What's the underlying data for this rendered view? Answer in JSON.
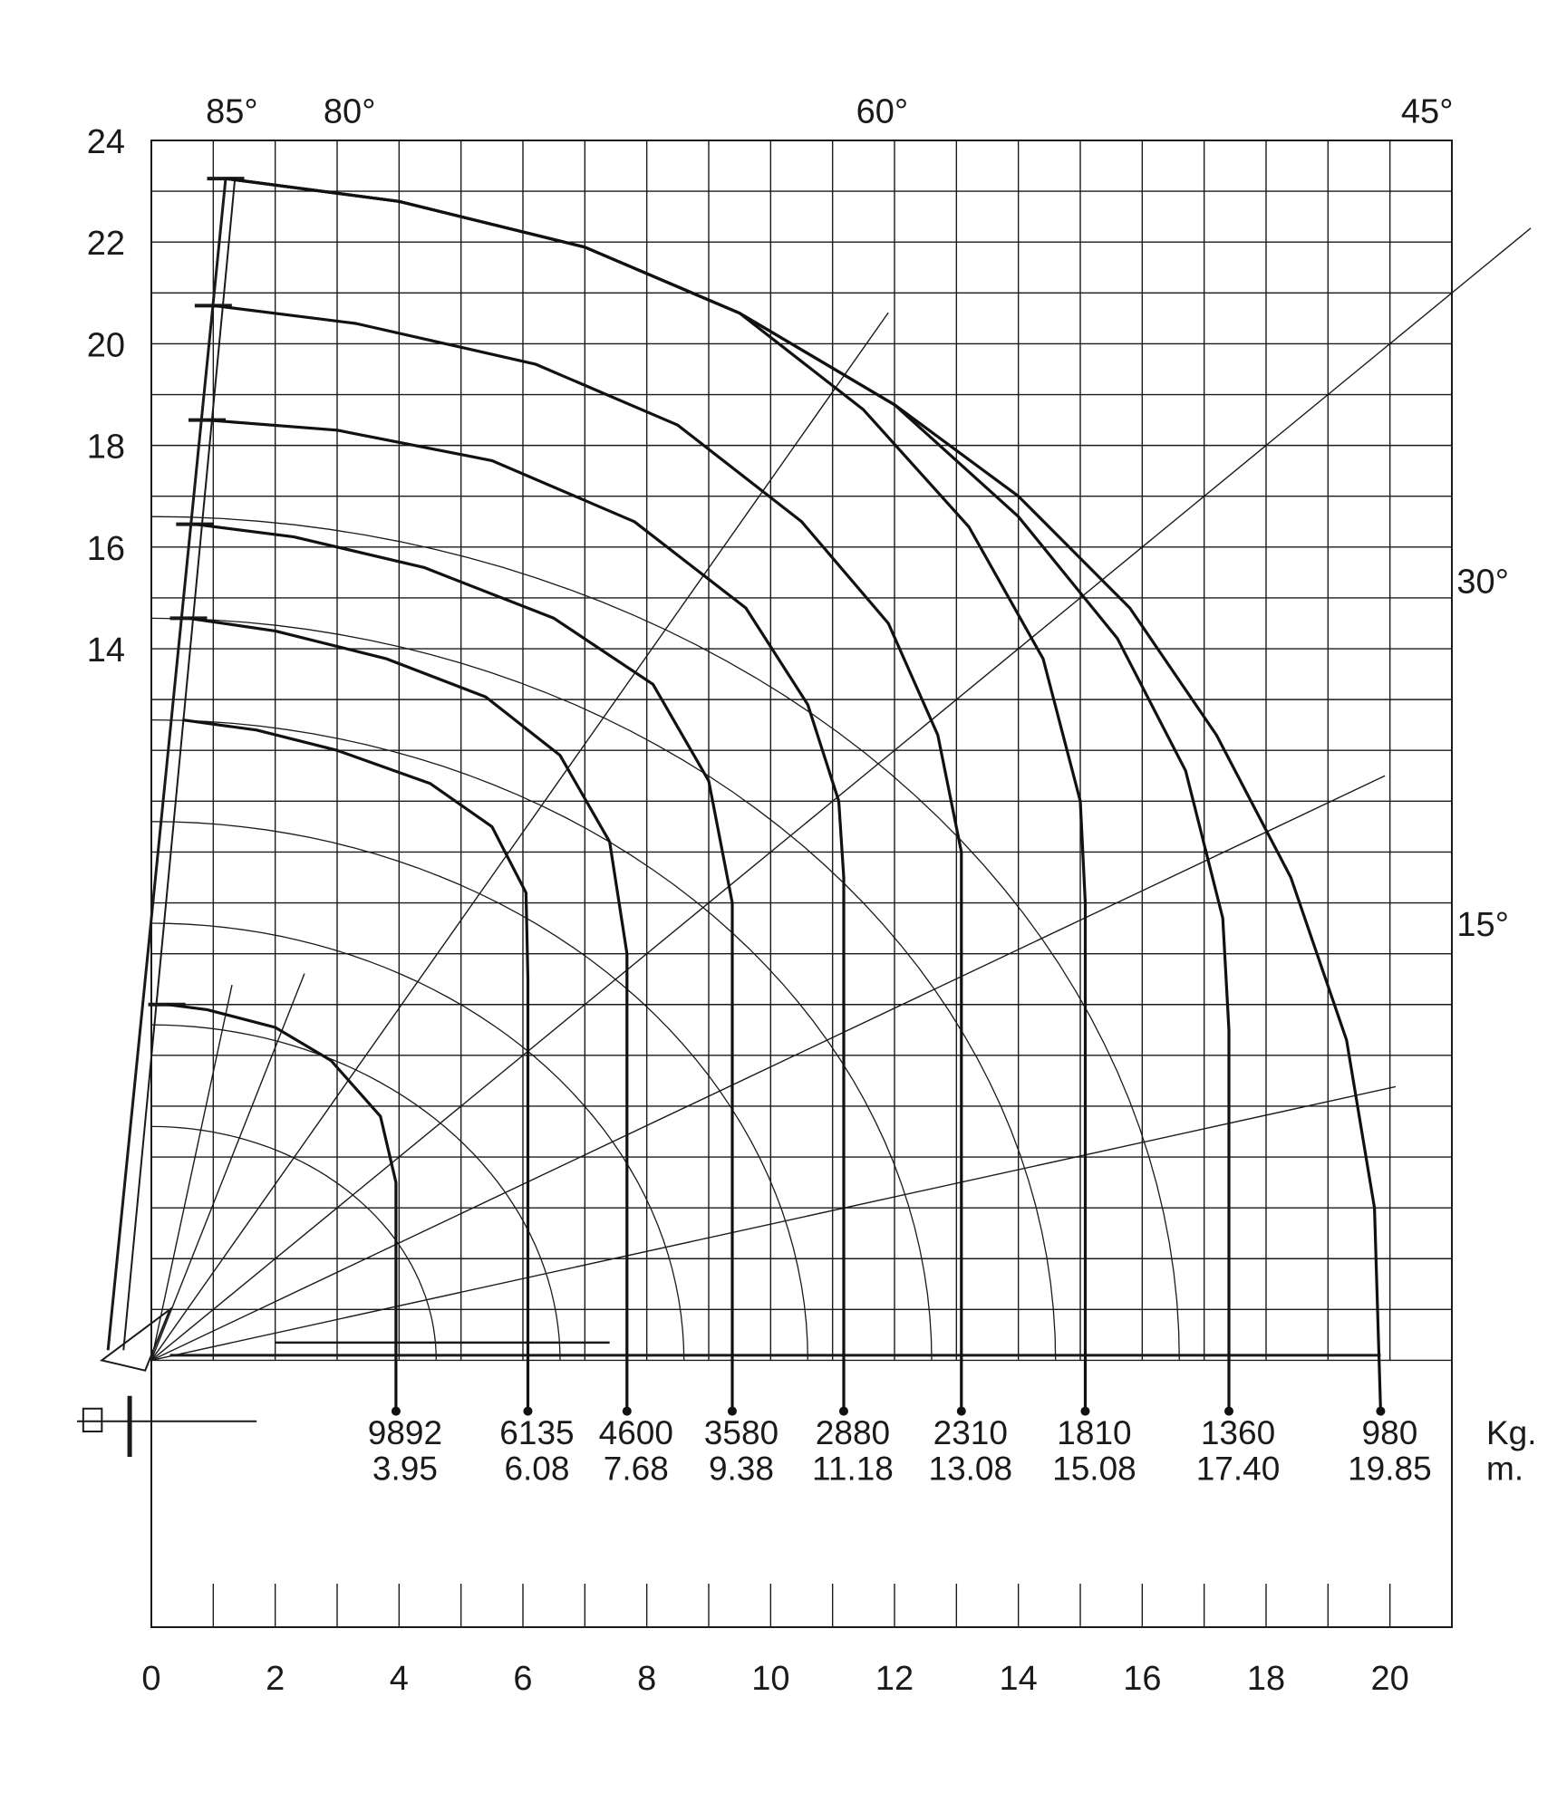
{
  "chart_data": {
    "type": "line",
    "title": "",
    "xlabel": "",
    "ylabel": "",
    "xlim": [
      0,
      21
    ],
    "ylim": [
      -5.25,
      24
    ],
    "x_ticks": [
      0,
      2,
      4,
      6,
      8,
      10,
      12,
      14,
      16,
      18,
      20
    ],
    "y_ticks": [
      24,
      22,
      20,
      18,
      16,
      14
    ],
    "grid": true,
    "angle_lines": [
      "85°",
      "80°",
      "60°",
      "45°",
      "30°",
      "15°"
    ],
    "unit_labels": {
      "load": "Kg.",
      "reach": "m."
    },
    "series": [
      {
        "load": "9892",
        "reach": "3.95",
        "x": [
          0.25,
          0.9,
          2.0,
          2.9,
          3.7,
          3.95,
          3.95
        ],
        "y": [
          7.0,
          6.9,
          6.55,
          5.9,
          4.8,
          3.5,
          -1.0
        ]
      },
      {
        "load": "6135",
        "reach": "6.08",
        "x": [
          0.5,
          1.7,
          3.0,
          4.5,
          5.5,
          6.05,
          6.08,
          6.08
        ],
        "y": [
          12.6,
          12.4,
          12.0,
          11.35,
          10.5,
          9.2,
          7.5,
          -1.0
        ]
      },
      {
        "load": "4600",
        "reach": "7.68",
        "x": [
          0.6,
          2.0,
          3.8,
          5.4,
          6.6,
          7.4,
          7.68,
          7.68
        ],
        "y": [
          14.6,
          14.35,
          13.8,
          13.05,
          11.9,
          10.2,
          8.0,
          -1.0
        ]
      },
      {
        "load": "3580",
        "reach": "9.38",
        "x": [
          0.7,
          2.3,
          4.4,
          6.5,
          8.1,
          9.0,
          9.38,
          9.38
        ],
        "y": [
          16.45,
          16.2,
          15.6,
          14.6,
          13.3,
          11.4,
          9.0,
          -1.0
        ]
      },
      {
        "load": "2880",
        "reach": "11.18",
        "x": [
          0.9,
          3.0,
          5.5,
          7.8,
          9.6,
          10.6,
          11.1,
          11.18,
          11.18
        ],
        "y": [
          18.5,
          18.3,
          17.7,
          16.5,
          14.8,
          12.9,
          11.0,
          9.5,
          -1.0
        ]
      },
      {
        "load": "2310",
        "reach": "13.08",
        "x": [
          1.0,
          3.3,
          6.2,
          8.5,
          10.5,
          11.9,
          12.7,
          13.08,
          13.08
        ],
        "y": [
          20.75,
          20.4,
          19.6,
          18.4,
          16.5,
          14.5,
          12.3,
          10.0,
          -1.0
        ]
      },
      {
        "load": "1810",
        "reach": "15.08",
        "x": [
          1.2,
          4.0,
          7.0,
          9.5,
          11.5,
          13.2,
          14.4,
          15.0,
          15.08,
          15.08
        ],
        "y": [
          23.25,
          22.8,
          21.9,
          20.6,
          18.7,
          16.4,
          13.8,
          11.0,
          9.0,
          -1.0
        ]
      },
      {
        "load": "1360",
        "reach": "17.40",
        "x": [
          1.2,
          4.0,
          7.0,
          9.5,
          12.0,
          14.0,
          15.6,
          16.7,
          17.3,
          17.4,
          17.4
        ],
        "y": [
          23.25,
          22.8,
          21.9,
          20.6,
          18.8,
          16.6,
          14.2,
          11.6,
          8.7,
          6.5,
          -1.0
        ]
      },
      {
        "load": "980",
        "reach": "19.85",
        "x": [
          1.2,
          4.0,
          7.0,
          9.5,
          12.0,
          14.0,
          15.8,
          17.2,
          18.4,
          19.3,
          19.75,
          19.85
        ],
        "y": [
          23.25,
          22.8,
          21.9,
          20.6,
          18.8,
          17.0,
          14.8,
          12.3,
          9.5,
          6.3,
          3.0,
          -1.0
        ]
      }
    ]
  }
}
